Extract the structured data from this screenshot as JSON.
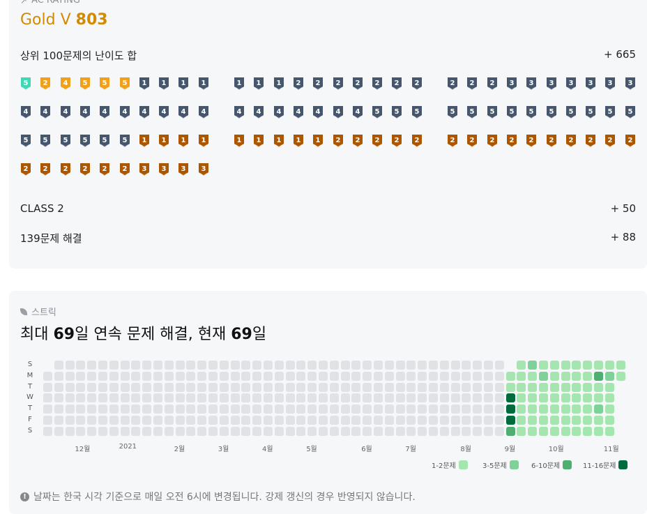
{
  "rating": {
    "section_label": "AC RATING",
    "tier_name": "Gold V",
    "tier_value": "803",
    "top100_label": "상위 100문제의 난이도 합",
    "top100_value": "+ 665",
    "class_label": "CLASS 2",
    "class_value": "+ 50",
    "solved_label": "139문제 해결",
    "solved_value": "+ 88",
    "badges": [
      {
        "tier": "diamond",
        "level": "5"
      },
      {
        "tier": "gold",
        "level": "2"
      },
      {
        "tier": "gold",
        "level": "4"
      },
      {
        "tier": "gold",
        "level": "5"
      },
      {
        "tier": "gold",
        "level": "5"
      },
      {
        "tier": "gold",
        "level": "5"
      },
      {
        "tier": "silver",
        "level": "1"
      },
      {
        "tier": "silver",
        "level": "1"
      },
      {
        "tier": "silver",
        "level": "1"
      },
      {
        "tier": "silver",
        "level": "1"
      },
      {
        "tier": "silver",
        "level": "1"
      },
      {
        "tier": "silver",
        "level": "1"
      },
      {
        "tier": "silver",
        "level": "1"
      },
      {
        "tier": "silver",
        "level": "2"
      },
      {
        "tier": "silver",
        "level": "2"
      },
      {
        "tier": "silver",
        "level": "2"
      },
      {
        "tier": "silver",
        "level": "2"
      },
      {
        "tier": "silver",
        "level": "2"
      },
      {
        "tier": "silver",
        "level": "2"
      },
      {
        "tier": "silver",
        "level": "2"
      },
      {
        "tier": "silver",
        "level": "2"
      },
      {
        "tier": "silver",
        "level": "2"
      },
      {
        "tier": "silver",
        "level": "2"
      },
      {
        "tier": "silver",
        "level": "3"
      },
      {
        "tier": "silver",
        "level": "3"
      },
      {
        "tier": "silver",
        "level": "3"
      },
      {
        "tier": "silver",
        "level": "3"
      },
      {
        "tier": "silver",
        "level": "3"
      },
      {
        "tier": "silver",
        "level": "3"
      },
      {
        "tier": "silver",
        "level": "3"
      },
      {
        "tier": "silver",
        "level": "4"
      },
      {
        "tier": "silver",
        "level": "4"
      },
      {
        "tier": "silver",
        "level": "4"
      },
      {
        "tier": "silver",
        "level": "4"
      },
      {
        "tier": "silver",
        "level": "4"
      },
      {
        "tier": "silver",
        "level": "4"
      },
      {
        "tier": "silver",
        "level": "4"
      },
      {
        "tier": "silver",
        "level": "4"
      },
      {
        "tier": "silver",
        "level": "4"
      },
      {
        "tier": "silver",
        "level": "4"
      },
      {
        "tier": "silver",
        "level": "4"
      },
      {
        "tier": "silver",
        "level": "4"
      },
      {
        "tier": "silver",
        "level": "4"
      },
      {
        "tier": "silver",
        "level": "4"
      },
      {
        "tier": "silver",
        "level": "4"
      },
      {
        "tier": "silver",
        "level": "4"
      },
      {
        "tier": "silver",
        "level": "4"
      },
      {
        "tier": "silver",
        "level": "5"
      },
      {
        "tier": "silver",
        "level": "5"
      },
      {
        "tier": "silver",
        "level": "5"
      },
      {
        "tier": "silver",
        "level": "5"
      },
      {
        "tier": "silver",
        "level": "5"
      },
      {
        "tier": "silver",
        "level": "5"
      },
      {
        "tier": "silver",
        "level": "5"
      },
      {
        "tier": "silver",
        "level": "5"
      },
      {
        "tier": "silver",
        "level": "5"
      },
      {
        "tier": "silver",
        "level": "5"
      },
      {
        "tier": "silver",
        "level": "5"
      },
      {
        "tier": "silver",
        "level": "5"
      },
      {
        "tier": "silver",
        "level": "5"
      },
      {
        "tier": "silver",
        "level": "5"
      },
      {
        "tier": "silver",
        "level": "5"
      },
      {
        "tier": "silver",
        "level": "5"
      },
      {
        "tier": "silver",
        "level": "5"
      },
      {
        "tier": "silver",
        "level": "5"
      },
      {
        "tier": "silver",
        "level": "5"
      },
      {
        "tier": "bronze",
        "level": "1"
      },
      {
        "tier": "bronze",
        "level": "1"
      },
      {
        "tier": "bronze",
        "level": "1"
      },
      {
        "tier": "bronze",
        "level": "1"
      },
      {
        "tier": "bronze",
        "level": "1"
      },
      {
        "tier": "bronze",
        "level": "1"
      },
      {
        "tier": "bronze",
        "level": "1"
      },
      {
        "tier": "bronze",
        "level": "1"
      },
      {
        "tier": "bronze",
        "level": "1"
      },
      {
        "tier": "bronze",
        "level": "2"
      },
      {
        "tier": "bronze",
        "level": "2"
      },
      {
        "tier": "bronze",
        "level": "2"
      },
      {
        "tier": "bronze",
        "level": "2"
      },
      {
        "tier": "bronze",
        "level": "2"
      },
      {
        "tier": "bronze",
        "level": "2"
      },
      {
        "tier": "bronze",
        "level": "2"
      },
      {
        "tier": "bronze",
        "level": "2"
      },
      {
        "tier": "bronze",
        "level": "2"
      },
      {
        "tier": "bronze",
        "level": "2"
      },
      {
        "tier": "bronze",
        "level": "2"
      },
      {
        "tier": "bronze",
        "level": "2"
      },
      {
        "tier": "bronze",
        "level": "2"
      },
      {
        "tier": "bronze",
        "level": "2"
      },
      {
        "tier": "bronze",
        "level": "2"
      },
      {
        "tier": "bronze",
        "level": "2"
      },
      {
        "tier": "bronze",
        "level": "2"
      },
      {
        "tier": "bronze",
        "level": "2"
      },
      {
        "tier": "bronze",
        "level": "2"
      },
      {
        "tier": "bronze",
        "level": "2"
      },
      {
        "tier": "bronze",
        "level": "2"
      },
      {
        "tier": "bronze",
        "level": "3"
      },
      {
        "tier": "bronze",
        "level": "3"
      },
      {
        "tier": "bronze",
        "level": "3"
      },
      {
        "tier": "bronze",
        "level": "3"
      }
    ]
  },
  "colors": {
    "gold": "#f0a01a",
    "silver": "#46566c",
    "bronze": "#ad5600",
    "diamond": "#3fd8b5",
    "empty_cell": "#e0e2e6",
    "level1": "#a5e6b0",
    "level2": "#7fd19a",
    "level3": "#4fae72",
    "level4": "#006c3e"
  },
  "streak": {
    "section_label": "스트릭",
    "title_prefix": "최대 ",
    "max_days": "69",
    "title_mid": "일 연속 문제 해결, 현재 ",
    "current_days": "69",
    "title_suffix": "일",
    "day_labels": [
      "S",
      "M",
      "T",
      "W",
      "T",
      "F",
      "S"
    ],
    "months": [
      {
        "label": "12월",
        "week": 3
      },
      {
        "label": "2021",
        "week": 7
      },
      {
        "label": "2월",
        "week": 12
      },
      {
        "label": "3월",
        "week": 16
      },
      {
        "label": "4월",
        "week": 20
      },
      {
        "label": "5월",
        "week": 24
      },
      {
        "label": "6월",
        "week": 29
      },
      {
        "label": "7월",
        "week": 33
      },
      {
        "label": "8월",
        "week": 38
      },
      {
        "label": "9월",
        "week": 42
      },
      {
        "label": "10월",
        "week": 46
      },
      {
        "label": "11월",
        "week": 51
      }
    ],
    "legend": [
      {
        "label": "1-2문제",
        "level": 1
      },
      {
        "label": "3-5문제",
        "level": 2
      },
      {
        "label": "6-10문제",
        "level": 3
      },
      {
        "label": "11-16문제",
        "level": 4
      }
    ],
    "footnote": "날짜는 한국 시각 기준으로 매일 오전 6시에 변경됩니다. 강제 갱신의 경우 반영되지 않습니다."
  }
}
